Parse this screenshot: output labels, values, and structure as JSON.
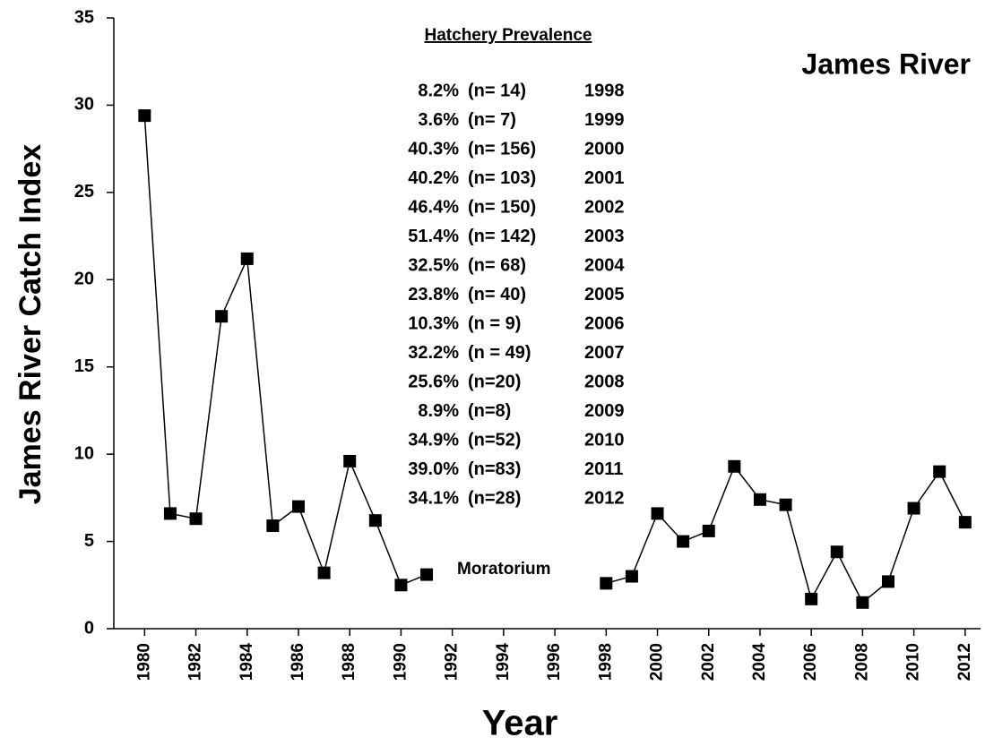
{
  "chart_data": {
    "type": "line",
    "title": "James River",
    "xlabel": "Year",
    "ylabel": "James River Catch Index",
    "x": [
      1980,
      1981,
      1982,
      1983,
      1984,
      1985,
      1986,
      1987,
      1988,
      1989,
      1990,
      1991,
      1992,
      1993,
      1994,
      1995,
      1996,
      1997,
      1998,
      1999,
      2000,
      2001,
      2002,
      2003,
      2004,
      2005,
      2006,
      2007,
      2008,
      2009,
      2010,
      2011,
      2012
    ],
    "values": [
      29.4,
      6.6,
      6.3,
      17.9,
      21.2,
      5.9,
      7.0,
      3.2,
      9.6,
      6.2,
      2.5,
      3.1,
      null,
      null,
      null,
      null,
      null,
      null,
      2.6,
      3.0,
      6.6,
      5.0,
      5.6,
      9.3,
      7.4,
      7.1,
      1.7,
      4.4,
      1.5,
      2.7,
      6.9,
      9.0,
      6.1
    ],
    "color": "#000000",
    "xlim": [
      1978.8,
      2012.6
    ],
    "xticks": [
      1980,
      1982,
      1984,
      1986,
      1988,
      1990,
      1992,
      1994,
      1996,
      1998,
      2000,
      2002,
      2004,
      2006,
      2008,
      2010,
      2012
    ],
    "ylim": [
      0,
      35
    ],
    "yticks": [
      0,
      5,
      10,
      15,
      20,
      25,
      30,
      35
    ],
    "annotations": {
      "moratorium": "Moratorium",
      "hatchery_title": "Hatchery Prevalence",
      "hatchery_rows": [
        [
          "8.2%",
          "(n= 14)",
          "1998"
        ],
        [
          "3.6%",
          "(n= 7)",
          "1999"
        ],
        [
          "40.3%",
          "(n= 156)",
          "2000"
        ],
        [
          "40.2%",
          "(n= 103)",
          "2001"
        ],
        [
          "46.4%",
          "(n= 150)",
          "2002"
        ],
        [
          "51.4%",
          "(n= 142)",
          "2003"
        ],
        [
          "32.5%",
          "(n= 68)",
          "2004"
        ],
        [
          "23.8%",
          "(n= 40)",
          "2005"
        ],
        [
          "10.3%",
          "(n = 9)",
          "2006"
        ],
        [
          "32.2%",
          "(n = 49)",
          "2007"
        ],
        [
          "25.6%",
          "(n=20)",
          "2008"
        ],
        [
          "8.9%",
          "(n=8)",
          "2009"
        ],
        [
          "34.9%",
          "(n=52)",
          "2010"
        ],
        [
          "39.0%",
          "(n=83)",
          "2011"
        ],
        [
          "34.1%",
          "(n=28)",
          "2012"
        ]
      ]
    }
  }
}
